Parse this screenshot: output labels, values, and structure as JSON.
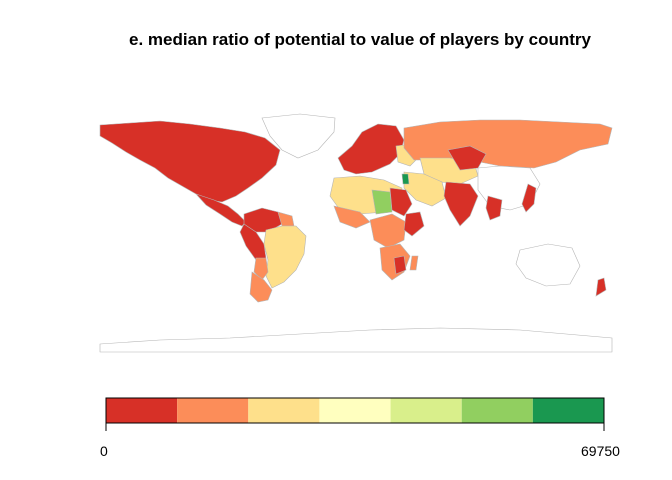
{
  "map": {
    "title": "e. median ratio of potential to value of players by country"
  },
  "legend": {
    "min_label": "0",
    "max_label": "69750",
    "colors": [
      "#d73027",
      "#fc8d59",
      "#fee08b",
      "#ffffbf",
      "#d9ef8b",
      "#91cf60",
      "#1a9850"
    ]
  },
  "palette": {
    "no_data": "#ffffff",
    "border": "#b5b5b5"
  }
}
